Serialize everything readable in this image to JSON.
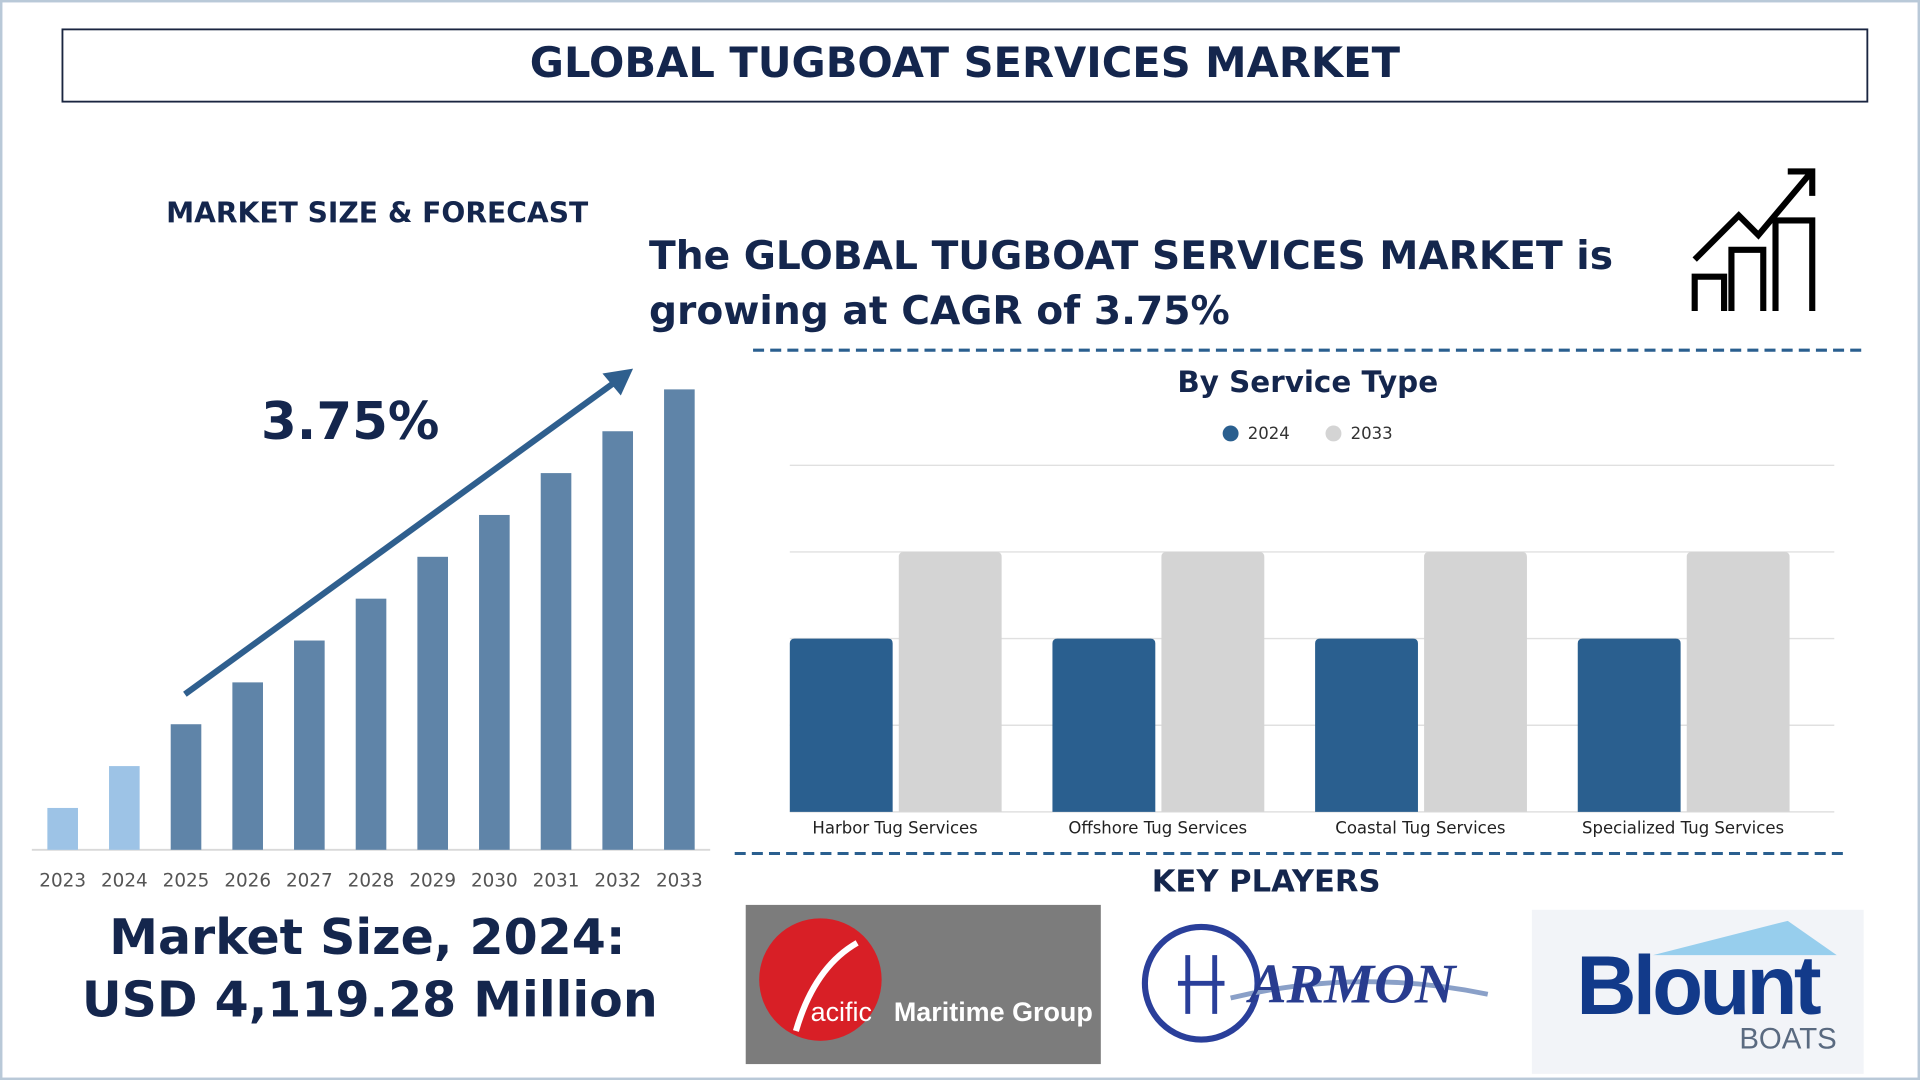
{
  "header": {
    "title": "GLOBAL TUGBOAT SERVICES MARKET"
  },
  "headline": {
    "lines": [
      "The GLOBAL TUGBOAT SERVICES MARKET is",
      "growing at CAGR of 3.75%"
    ]
  },
  "market_size": {
    "lines": [
      "Market Size, 2024:",
      "USD 4,119.28 Million"
    ]
  },
  "key_players": {
    "title": "KEY PLAYERS",
    "logos": [
      "acific",
      "Maritime Group",
      "ARMON",
      "Blount",
      "BOATS"
    ]
  },
  "chart_data": [
    {
      "type": "bar",
      "title": "MARKET SIZE & FORECAST",
      "annotation": "3.75%",
      "categories": [
        "2023",
        "2024",
        "2025",
        "2026",
        "2027",
        "2028",
        "2029",
        "2030",
        "2031",
        "2032",
        "2033"
      ],
      "values": [
        1,
        2,
        3,
        4,
        5,
        6,
        7,
        8,
        9,
        10,
        11
      ],
      "colors": [
        "#9dc3e6",
        "#9dc3e6",
        "#5f84a8",
        "#5f84a8",
        "#5f84a8",
        "#5f84a8",
        "#5f84a8",
        "#5f84a8",
        "#5f84a8",
        "#5f84a8",
        "#5f84a8"
      ],
      "ylim": [
        0,
        11
      ]
    },
    {
      "type": "grouped-bar",
      "title": "By Service Type",
      "categories": [
        "Harbor Tug Services",
        "Offshore Tug Services",
        "Coastal Tug Services",
        "Specialized Tug Services"
      ],
      "series": [
        {
          "name": "2024",
          "color": "#2a5f8f",
          "values": [
            2,
            2,
            2,
            2
          ]
        },
        {
          "name": "2033",
          "color": "#d4d4d4",
          "values": [
            3,
            3,
            3,
            3
          ]
        }
      ],
      "ylim": [
        0,
        4
      ],
      "yticks": [
        0,
        1,
        2,
        3,
        4
      ],
      "grid": true,
      "show_tick_labels": false,
      "legend": "top"
    }
  ]
}
